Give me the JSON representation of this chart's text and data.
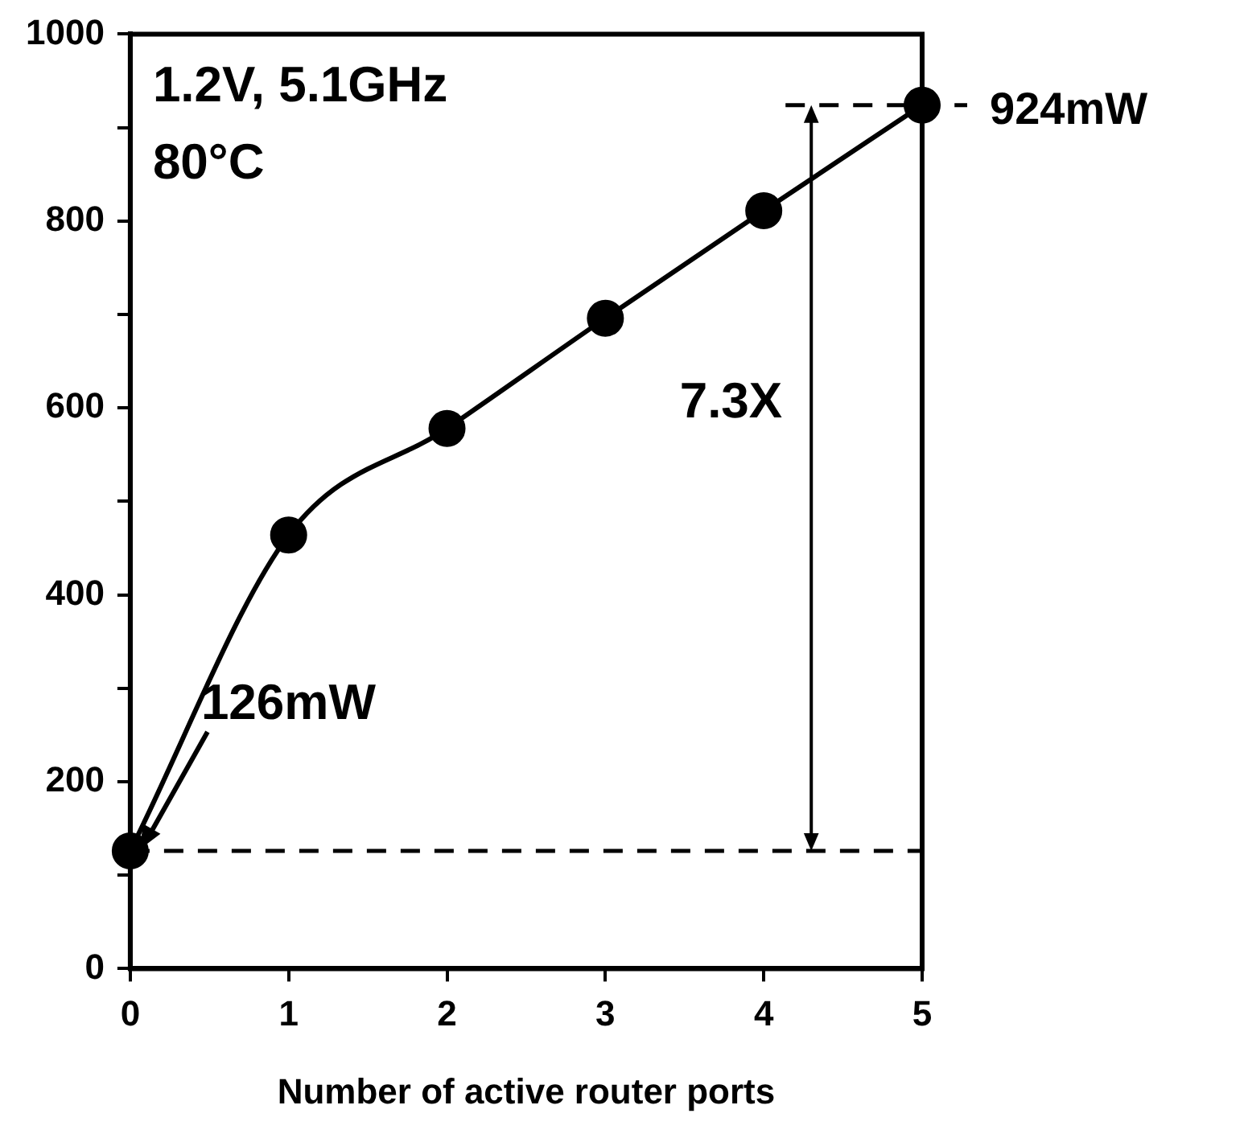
{
  "chart_data": {
    "type": "line",
    "xlabel": "Number of active router ports",
    "x": [
      0,
      1,
      2,
      3,
      4,
      5
    ],
    "values": [
      126,
      464,
      578,
      696,
      811,
      924
    ],
    "color": "#000000",
    "marker": "circle",
    "line_style": "solid",
    "xlim": [
      0,
      5
    ],
    "xticks": [
      0,
      1,
      2,
      3,
      4,
      5
    ],
    "ylim": [
      0,
      1000
    ],
    "yticks": [
      0,
      {
        "value": 100,
        "label": null
      },
      200,
      {
        "value": 300,
        "label": null
      },
      400,
      {
        "value": 500,
        "label": null
      },
      600,
      {
        "value": 700,
        "label": null
      },
      800,
      {
        "value": 900,
        "label": null
      },
      1000
    ],
    "grid": false,
    "ref_lines": [
      {
        "axis": "y",
        "value": 126,
        "line_style": "dashed"
      },
      {
        "axis": "y",
        "value": 924,
        "label": "924mW",
        "line_style": "dashed"
      }
    ],
    "annotations": [
      "1.2V, 5.1GHz",
      "80°C",
      {
        "text": "126mW",
        "x": 0,
        "y": 126
      },
      "7.3X"
    ]
  }
}
